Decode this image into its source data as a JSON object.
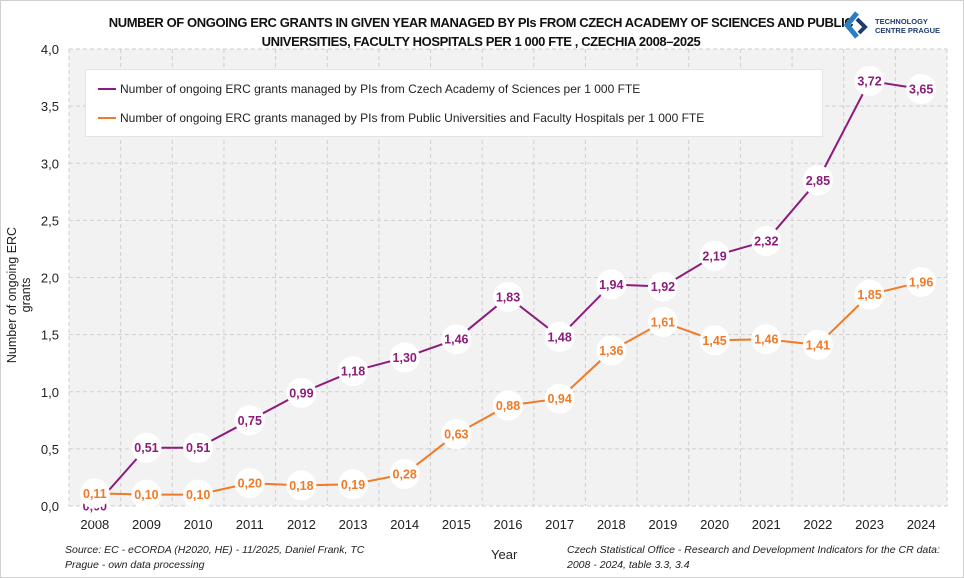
{
  "header": {
    "title": "NUMBER OF ONGOING ERC GRANTS IN GIVEN YEAR MANAGED BY PIs FROM CZECH ACADEMY OF SCIENCES AND PUBLIC UNIVERSITIES, FACULTY HOSPITALS PER 1 000 FTE , CZECHIA 2008–2025",
    "logo_text_1": "TECHNOLOGY",
    "logo_text_2": "CENTRE PRAGUE"
  },
  "footer": {
    "source_left": "Source: EC - eCORDA (H2020, HE) - 11/2025,  Daniel Frank, TC Prague - own data processing",
    "source_right": "Czech Statistical Office - Research and Development  Indicators for the CR data: 2008 - 2024, table 3.3, 3.4"
  },
  "chart_data": {
    "type": "line",
    "xlabel": "Year",
    "ylabel": "Number of ongoing ERC grants",
    "ylim": [
      0,
      4
    ],
    "yticks": [
      "0,0",
      "0,5",
      "1,0",
      "1,5",
      "2,0",
      "2,5",
      "3,0",
      "3,5",
      "4,0"
    ],
    "grid": true,
    "legend": "top-left",
    "categories": [
      "2008",
      "2009",
      "2010",
      "2011",
      "2012",
      "2013",
      "2014",
      "2015",
      "2016",
      "2017",
      "2018",
      "2019",
      "2020",
      "2021",
      "2022",
      "2023",
      "2024"
    ],
    "series": [
      {
        "name": "Number of ongoing ERC grants managed by PIs from Czech Academy of Sciences per 1 000 FTE",
        "color": "#8c1c7c",
        "values": [
          0.0,
          0.51,
          0.51,
          0.75,
          0.99,
          1.18,
          1.3,
          1.46,
          1.83,
          1.48,
          1.94,
          1.92,
          2.19,
          2.32,
          2.85,
          3.72,
          3.65
        ]
      },
      {
        "name": "Number of ongoing ERC grants managed by PIs from Public Universities and Faculty Hospitals per 1 000 FTE",
        "color": "#f07a28",
        "values": [
          0.11,
          0.1,
          0.1,
          0.2,
          0.18,
          0.19,
          0.28,
          0.63,
          0.88,
          0.94,
          1.36,
          1.61,
          1.45,
          1.46,
          1.41,
          1.85,
          1.96
        ]
      }
    ]
  }
}
